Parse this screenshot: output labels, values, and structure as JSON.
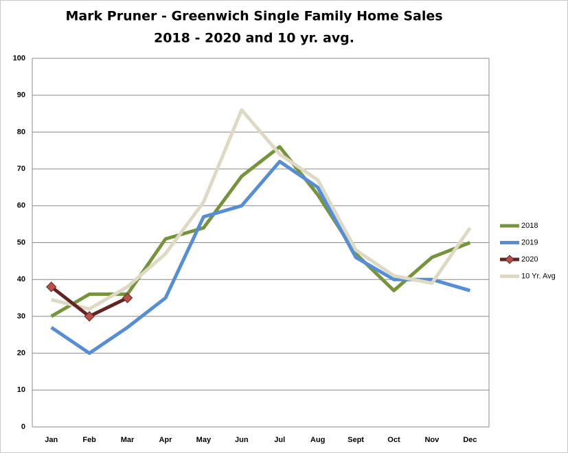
{
  "chart_data": {
    "type": "line",
    "title": [
      "Mark Pruner - Greenwich Single Family Home Sales",
      "2018 - 2020 and 10 yr. avg."
    ],
    "categories": [
      "Jan",
      "Feb",
      "Mar",
      "Apr",
      "May",
      "Jun",
      "Jul",
      "Aug",
      "Sept",
      "Oct",
      "Nov",
      "Dec"
    ],
    "series": [
      {
        "name": "2018",
        "color": "#77933c",
        "values": [
          30,
          36,
          36,
          51,
          54,
          68,
          76,
          63,
          47,
          37,
          46,
          50
        ]
      },
      {
        "name": "2019",
        "color": "#558ed5",
        "values": [
          27,
          20,
          27,
          35,
          57,
          60,
          72,
          65,
          46,
          40,
          40,
          37
        ]
      },
      {
        "name": "2020",
        "color": "#632523",
        "marker": "diamond",
        "marker_color": "#b9504a",
        "values": [
          38,
          30,
          35,
          null,
          null,
          null,
          null,
          null,
          null,
          null,
          null,
          null
        ]
      },
      {
        "name": "10 Yr. Avg",
        "color": "#ddd9c3",
        "values": [
          34.5,
          32,
          38,
          47,
          61,
          86,
          74,
          67,
          48,
          41,
          39,
          54
        ]
      }
    ],
    "ylim": [
      0,
      100
    ],
    "yticks": [
      0,
      10,
      20,
      30,
      40,
      50,
      60,
      70,
      80,
      90,
      100
    ],
    "grid": true,
    "legend": "right"
  }
}
